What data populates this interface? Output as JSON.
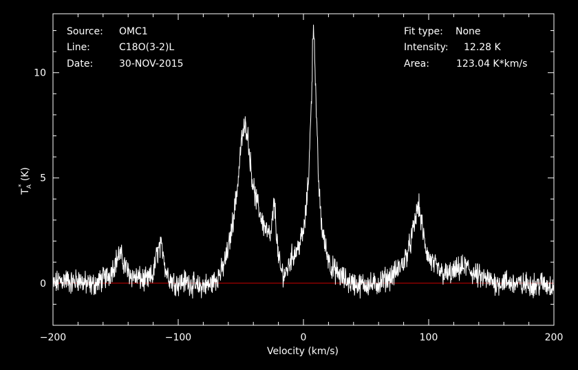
{
  "header": {
    "source_label": "Source:",
    "source_value": "OMC1",
    "line_label": "Line:",
    "line_value": "C18O(3-2)L",
    "date_label": "Date:",
    "date_value": "30-NOV-2015",
    "fit_label": "Fit type:",
    "fit_value": "None",
    "intensity_label": "Intensity:",
    "intensity_value": "12.28 K",
    "area_label": "Area:",
    "area_value": "123.04 K*km/s"
  },
  "colors": {
    "background": "#000000",
    "foreground": "#ffffff",
    "spectrum": "#ffffff",
    "baseline": "#cc0000"
  },
  "chart_data": {
    "type": "line",
    "title": "",
    "xlabel": "Velocity (km/s)",
    "ylabel_main": "T",
    "ylabel_sub": "A",
    "ylabel_sup": "*",
    "ylabel_unit": " (K)",
    "xlim": [
      -200,
      200
    ],
    "ylim": [
      -2,
      12.8
    ],
    "xticks": [
      -200,
      -100,
      0,
      100,
      200
    ],
    "xtick_labels": [
      "−200",
      "−100",
      "0",
      "100",
      "200"
    ],
    "yticks": [
      0,
      5,
      10
    ],
    "ytick_labels": [
      "0",
      "5",
      "10"
    ],
    "grid": false,
    "baseline_y": 0,
    "series": [
      {
        "x": [
          -200,
          -195,
          -190,
          -185,
          -180,
          -175,
          -170,
          -165,
          -160,
          -155,
          -150,
          -147,
          -145,
          -140,
          -135,
          -130,
          -125,
          -120,
          -117,
          -115,
          -112,
          -110,
          -105,
          -100,
          -95,
          -90,
          -85,
          -80,
          -75,
          -70,
          -65,
          -60,
          -55,
          -52,
          -50,
          -48,
          -46,
          -45,
          -44,
          -42,
          -40,
          -38,
          -35,
          -32,
          -30,
          -28,
          -26,
          -24,
          -23,
          -22,
          -20,
          -18,
          -15,
          -12,
          -10,
          -5,
          0,
          2,
          4,
          6,
          7,
          8,
          9,
          10,
          12,
          14,
          16,
          18,
          20,
          22,
          25,
          30,
          35,
          40,
          45,
          50,
          55,
          60,
          65,
          70,
          75,
          80,
          85,
          88,
          90,
          91,
          92,
          93,
          95,
          97,
          100,
          105,
          110,
          115,
          120,
          125,
          130,
          135,
          140,
          145,
          150,
          155,
          160,
          165,
          170,
          175,
          180,
          185,
          190,
          195,
          200
        ],
        "y": [
          -0.1,
          0.1,
          0.2,
          0.0,
          0.2,
          0.0,
          -0.1,
          0.0,
          0.2,
          0.4,
          1.0,
          1.4,
          1.2,
          0.5,
          0.3,
          0.2,
          0.1,
          0.4,
          1.4,
          1.7,
          1.6,
          0.6,
          0.1,
          0.0,
          0.1,
          0.0,
          -0.2,
          -0.1,
          -0.1,
          0.2,
          0.6,
          1.6,
          3.5,
          5.0,
          6.5,
          7.2,
          7.5,
          7.3,
          6.8,
          5.5,
          4.6,
          4.0,
          3.4,
          2.8,
          2.6,
          2.3,
          2.2,
          3.5,
          3.8,
          2.8,
          1.2,
          0.6,
          0.4,
          0.8,
          1.2,
          1.6,
          2.4,
          3.4,
          5.0,
          8.0,
          10.0,
          12.28,
          11.0,
          8.5,
          5.0,
          3.0,
          2.2,
          1.6,
          1.2,
          0.8,
          0.6,
          0.3,
          0.1,
          0.0,
          -0.1,
          0.0,
          -0.1,
          0.0,
          0.2,
          0.3,
          0.6,
          1.0,
          1.8,
          2.6,
          3.2,
          3.6,
          3.7,
          3.3,
          2.6,
          1.8,
          1.2,
          0.8,
          0.5,
          0.4,
          0.5,
          0.7,
          0.8,
          0.5,
          0.3,
          0.2,
          0.1,
          0.0,
          0.1,
          0.0,
          0.0,
          -0.1,
          0.0,
          -0.1,
          0.0,
          -0.1,
          -0.1
        ]
      }
    ]
  }
}
